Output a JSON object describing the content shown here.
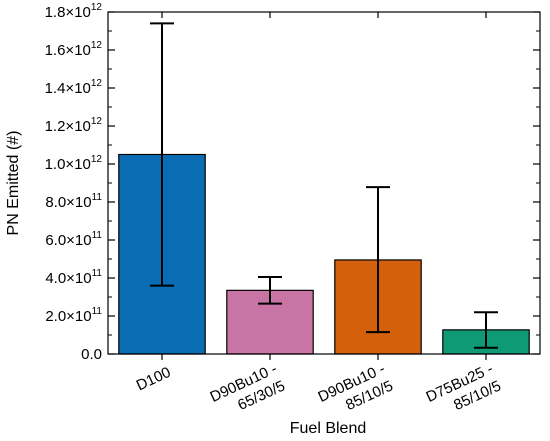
{
  "chart_data": {
    "type": "bar",
    "xlabel": "Fuel Blend",
    "ylabel": "PN Emitted (#)",
    "ylim": [
      0,
      1800000000000.0
    ],
    "yticks": [
      {
        "value": 0,
        "mantissa": "0.0",
        "exp": ""
      },
      {
        "value": 200000000000.0,
        "mantissa": "2.0×10",
        "exp": "11"
      },
      {
        "value": 400000000000.0,
        "mantissa": "4.0×10",
        "exp": "11"
      },
      {
        "value": 600000000000.0,
        "mantissa": "6.0×10",
        "exp": "11"
      },
      {
        "value": 800000000000.0,
        "mantissa": "8.0×10",
        "exp": "11"
      },
      {
        "value": 1000000000000.0,
        "mantissa": "1.0×10",
        "exp": "12"
      },
      {
        "value": 1200000000000.0,
        "mantissa": "1.2×10",
        "exp": "12"
      },
      {
        "value": 1400000000000.0,
        "mantissa": "1.4×10",
        "exp": "12"
      },
      {
        "value": 1600000000000.0,
        "mantissa": "1.6×10",
        "exp": "12"
      },
      {
        "value": 1800000000000.0,
        "mantissa": "1.8×10",
        "exp": "12"
      }
    ],
    "categories": [
      [
        "D100"
      ],
      [
        "D90Bu10 -",
        "65/30/5"
      ],
      [
        "D90Bu10 -",
        "85/10/5"
      ],
      [
        "D75Bu25 -",
        "85/10/5"
      ]
    ],
    "values": [
      1050000000000.0,
      335000000000.0,
      495000000000.0,
      127000000000.0
    ],
    "error_low": [
      360000000000.0,
      265000000000.0,
      115000000000.0,
      33000000000.0
    ],
    "error_high": [
      1740000000000.0,
      405000000000.0,
      878000000000.0,
      220000000000.0
    ],
    "colors": [
      "#0a6db3",
      "#c874a4",
      "#d4600c",
      "#0f9a76"
    ],
    "grid": false
  }
}
